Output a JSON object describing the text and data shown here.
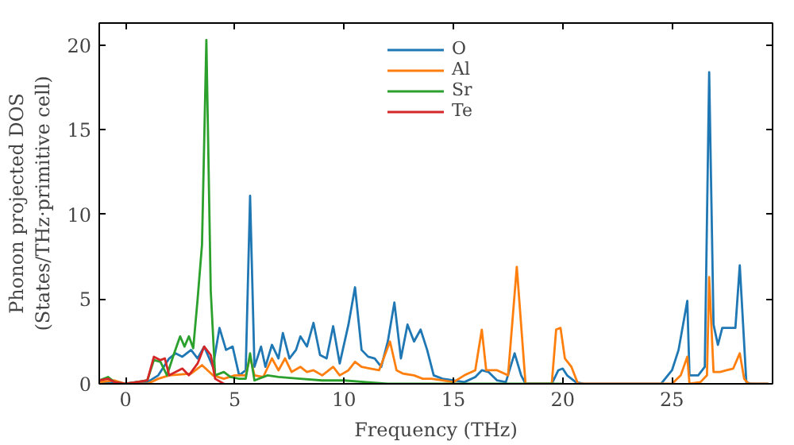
{
  "chart_data": {
    "type": "line",
    "xlabel": "Frequency (THz)",
    "ylabel": "Phonon projected DOS\n(States/THz·primitive cell)",
    "xlim": [
      -1.2,
      29.6
    ],
    "ylim": [
      0,
      21.3
    ],
    "xticks": [
      0,
      5,
      10,
      15,
      20,
      25
    ],
    "yticks": [
      0,
      5,
      10,
      15,
      20
    ],
    "grid": false,
    "legend": "top",
    "line_style": "solid",
    "marker": "none",
    "series": [
      {
        "name": "O",
        "color": "#1f77b4",
        "x": [
          -1.2,
          -0.5,
          0,
          0.5,
          1,
          1.5,
          2,
          2.3,
          2.6,
          3,
          3.3,
          3.6,
          4,
          4.3,
          4.6,
          4.9,
          5.2,
          5.5,
          5.7,
          5.9,
          6.2,
          6.4,
          6.7,
          7,
          7.2,
          7.5,
          7.8,
          8,
          8.3,
          8.6,
          8.9,
          9.2,
          9.5,
          9.8,
          10.2,
          10.5,
          10.8,
          11.1,
          11.4,
          11.7,
          12,
          12.3,
          12.6,
          12.9,
          13.2,
          13.5,
          13.8,
          14.1,
          14.5,
          15,
          15.5,
          16,
          16.3,
          16.6,
          17,
          17.4,
          17.8,
          18.1,
          18.3,
          19.5,
          19.8,
          20,
          20.2,
          20.6,
          21,
          24.5,
          25,
          25.3,
          25.7,
          25.8,
          26.2,
          26.5,
          26.7,
          26.9,
          27.1,
          27.3,
          27.6,
          27.9,
          28.1,
          28.4,
          28.6,
          29.4
        ],
        "values": [
          0,
          0.1,
          0,
          0.1,
          0.1,
          0.5,
          1.5,
          1.8,
          1.6,
          2,
          1.5,
          2.2,
          1,
          3.3,
          2,
          2.2,
          0.5,
          0.8,
          11.1,
          1,
          2.2,
          1,
          2.3,
          1.5,
          3,
          1.5,
          2,
          2.8,
          2.2,
          3.6,
          1.7,
          1.5,
          3.4,
          1.2,
          3.5,
          5.7,
          2,
          1.6,
          1.5,
          1,
          2.5,
          4.8,
          1.5,
          3.5,
          2.5,
          3.2,
          2,
          0.5,
          0.3,
          0.2,
          0.1,
          0.4,
          0.8,
          0.7,
          0.2,
          0.1,
          1.8,
          0.5,
          0,
          0,
          0.8,
          0.9,
          0.5,
          0.1,
          0,
          0,
          0.8,
          2,
          4.9,
          0.5,
          0.5,
          1,
          18.4,
          3.5,
          2.3,
          3.3,
          3.3,
          3.3,
          7,
          0.1,
          0,
          0
        ]
      },
      {
        "name": "Al",
        "color": "#ff7f0e",
        "x": [
          -1.2,
          -0.5,
          0,
          1,
          1.5,
          2,
          3,
          3.5,
          4,
          4.5,
          5,
          5.5,
          5.7,
          5.9,
          6.3,
          6.7,
          7,
          7.3,
          7.6,
          8,
          8.3,
          8.6,
          9,
          9.5,
          9.8,
          10.2,
          10.5,
          10.8,
          11.2,
          11.6,
          12.1,
          12.4,
          12.7,
          13.2,
          13.6,
          14,
          14.5,
          15,
          15.5,
          16,
          16.3,
          16.5,
          17,
          17.5,
          17.9,
          18.3,
          19.5,
          19.7,
          19.9,
          20.1,
          20.4,
          20.7,
          25,
          25.4,
          25.7,
          25.8,
          26.3,
          26.6,
          26.7,
          26.9,
          27.2,
          27.5,
          27.8,
          28.1,
          28.3,
          28.5,
          29.4
        ],
        "values": [
          0.1,
          0.2,
          0,
          0,
          0.3,
          0.5,
          0.6,
          1.1,
          0.5,
          0.3,
          0.5,
          0.5,
          1.6,
          0.5,
          0.4,
          1.5,
          0.8,
          1.5,
          0.7,
          1,
          0.7,
          0.8,
          0.5,
          1,
          0.5,
          0.8,
          1.3,
          1,
          0.9,
          0.8,
          2.5,
          0.8,
          0.6,
          0.5,
          0.3,
          0.3,
          0.2,
          0.1,
          0.5,
          0.8,
          3.2,
          0.8,
          0.8,
          0.5,
          6.9,
          0,
          0,
          3.2,
          3.3,
          1.5,
          1,
          0,
          0,
          0.5,
          1.6,
          0,
          0.1,
          0.5,
          6.3,
          0.7,
          0.7,
          0.8,
          0.9,
          1.8,
          0.3,
          0,
          0
        ]
      },
      {
        "name": "Sr",
        "color": "#2ca02c",
        "x": [
          -1.2,
          -0.8,
          -0.5,
          0,
          0.5,
          1,
          1.3,
          1.6,
          1.9,
          2.2,
          2.5,
          2.7,
          2.9,
          3.1,
          3.3,
          3.5,
          3.7,
          3.9,
          4.1,
          4.5,
          4.8,
          5.2,
          5.5,
          5.7,
          5.9,
          6.5,
          7,
          8,
          9,
          10,
          11,
          12,
          20
        ],
        "values": [
          0.2,
          0.4,
          0.1,
          0,
          0.1,
          0.2,
          1.4,
          1.3,
          0.5,
          1.7,
          2.8,
          2.2,
          2.8,
          2.1,
          5,
          8.2,
          20.3,
          5.5,
          0.5,
          0.7,
          0.4,
          0.3,
          0.3,
          1.8,
          0.2,
          0.5,
          0.4,
          0.3,
          0.2,
          0.2,
          0.1,
          0,
          0
        ]
      },
      {
        "name": "Te",
        "color": "#d62728",
        "x": [
          -1.2,
          -0.8,
          -0.5,
          0,
          0.5,
          1,
          1.3,
          1.6,
          1.8,
          2,
          2.3,
          2.6,
          2.9,
          3.3,
          3.6,
          3.9,
          4.1,
          4.5
        ],
        "values": [
          0.2,
          0.3,
          0.1,
          0,
          0.1,
          0.2,
          1.6,
          1.4,
          1.5,
          0.5,
          0.7,
          0.9,
          0.5,
          1.2,
          2.2,
          1.7,
          0.3,
          0
        ]
      }
    ]
  }
}
